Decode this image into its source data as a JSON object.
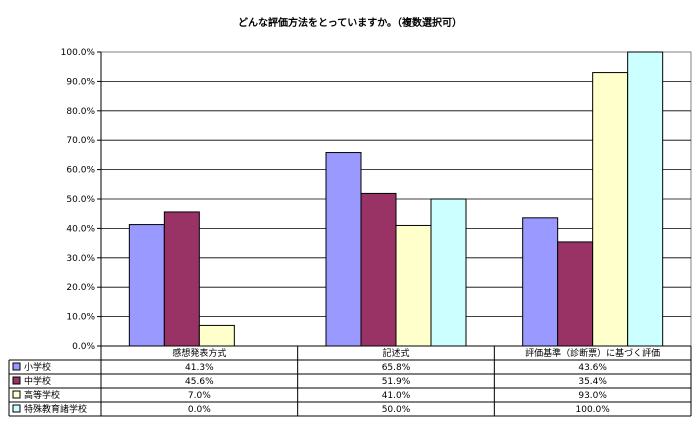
{
  "chart_data": {
    "type": "bar",
    "title": "どんな評価方法をとっていますか。（複数選択可）",
    "categories": [
      "感想発表方式",
      "記述式",
      "評価基準（診断票）に基づく評価"
    ],
    "series": [
      {
        "name": "小学校",
        "color": "#9999ff",
        "values": [
          41.3,
          65.8,
          43.6
        ],
        "labels": [
          "41.3%",
          "65.8%",
          "43.6%"
        ]
      },
      {
        "name": "中学校",
        "color": "#993366",
        "values": [
          45.6,
          51.9,
          35.4
        ],
        "labels": [
          "45.6%",
          "51.9%",
          "35.4%"
        ]
      },
      {
        "name": "高等学校",
        "color": "#ffffcc",
        "values": [
          7.0,
          41.0,
          93.0
        ],
        "labels": [
          "7.0%",
          "41.0%",
          "93.0%"
        ]
      },
      {
        "name": "特殊教育諸学校",
        "color": "#ccffff",
        "values": [
          0.0,
          50.0,
          100.0
        ],
        "labels": [
          "0.0%",
          "50.0%",
          "100.0%"
        ]
      }
    ],
    "ylim": [
      0,
      100
    ],
    "yticks": [
      "0.0%",
      "10.0%",
      "20.0%",
      "30.0%",
      "40.0%",
      "50.0%",
      "60.0%",
      "70.0%",
      "80.0%",
      "90.0%",
      "100.0%"
    ],
    "grid": true,
    "legend": "data-table"
  }
}
